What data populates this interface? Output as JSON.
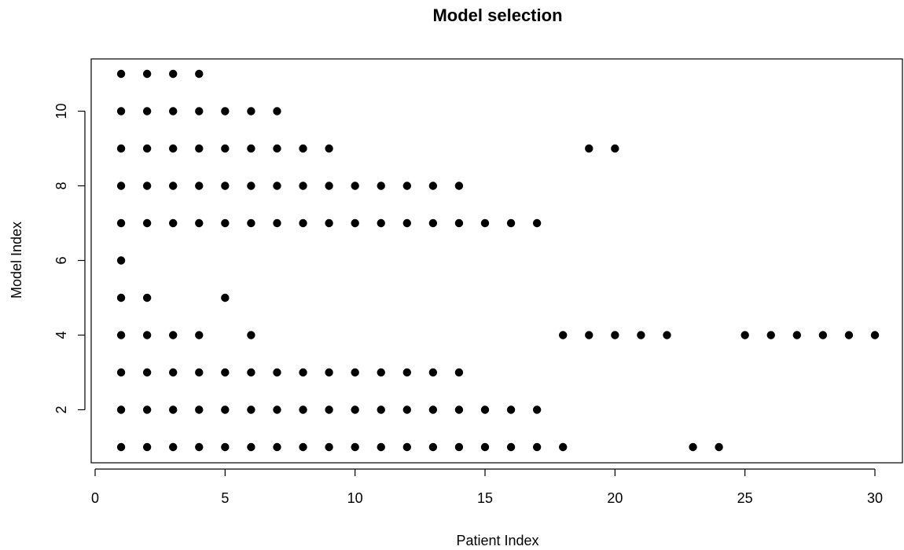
{
  "chart_data": {
    "type": "scatter",
    "title": "Model selection",
    "xlabel": "Patient Index",
    "ylabel": "Model Index",
    "xlim": [
      0,
      30
    ],
    "ylim": [
      1,
      11
    ],
    "xticks": [
      0,
      5,
      10,
      15,
      20,
      25,
      30
    ],
    "yticks": [
      2,
      4,
      6,
      8,
      10
    ],
    "grid": false,
    "marker_color": "#000000",
    "points": [
      {
        "x": 1,
        "y": 11
      },
      {
        "x": 2,
        "y": 11
      },
      {
        "x": 3,
        "y": 11
      },
      {
        "x": 4,
        "y": 11
      },
      {
        "x": 1,
        "y": 10
      },
      {
        "x": 2,
        "y": 10
      },
      {
        "x": 3,
        "y": 10
      },
      {
        "x": 4,
        "y": 10
      },
      {
        "x": 5,
        "y": 10
      },
      {
        "x": 6,
        "y": 10
      },
      {
        "x": 7,
        "y": 10
      },
      {
        "x": 1,
        "y": 9
      },
      {
        "x": 2,
        "y": 9
      },
      {
        "x": 3,
        "y": 9
      },
      {
        "x": 4,
        "y": 9
      },
      {
        "x": 5,
        "y": 9
      },
      {
        "x": 6,
        "y": 9
      },
      {
        "x": 7,
        "y": 9
      },
      {
        "x": 8,
        "y": 9
      },
      {
        "x": 9,
        "y": 9
      },
      {
        "x": 19,
        "y": 9
      },
      {
        "x": 20,
        "y": 9
      },
      {
        "x": 1,
        "y": 8
      },
      {
        "x": 2,
        "y": 8
      },
      {
        "x": 3,
        "y": 8
      },
      {
        "x": 4,
        "y": 8
      },
      {
        "x": 5,
        "y": 8
      },
      {
        "x": 6,
        "y": 8
      },
      {
        "x": 7,
        "y": 8
      },
      {
        "x": 8,
        "y": 8
      },
      {
        "x": 9,
        "y": 8
      },
      {
        "x": 10,
        "y": 8
      },
      {
        "x": 11,
        "y": 8
      },
      {
        "x": 12,
        "y": 8
      },
      {
        "x": 13,
        "y": 8
      },
      {
        "x": 14,
        "y": 8
      },
      {
        "x": 1,
        "y": 7
      },
      {
        "x": 2,
        "y": 7
      },
      {
        "x": 3,
        "y": 7
      },
      {
        "x": 4,
        "y": 7
      },
      {
        "x": 5,
        "y": 7
      },
      {
        "x": 6,
        "y": 7
      },
      {
        "x": 7,
        "y": 7
      },
      {
        "x": 8,
        "y": 7
      },
      {
        "x": 9,
        "y": 7
      },
      {
        "x": 10,
        "y": 7
      },
      {
        "x": 11,
        "y": 7
      },
      {
        "x": 12,
        "y": 7
      },
      {
        "x": 13,
        "y": 7
      },
      {
        "x": 14,
        "y": 7
      },
      {
        "x": 15,
        "y": 7
      },
      {
        "x": 16,
        "y": 7
      },
      {
        "x": 17,
        "y": 7
      },
      {
        "x": 1,
        "y": 6
      },
      {
        "x": 1,
        "y": 5
      },
      {
        "x": 2,
        "y": 5
      },
      {
        "x": 5,
        "y": 5
      },
      {
        "x": 1,
        "y": 4
      },
      {
        "x": 2,
        "y": 4
      },
      {
        "x": 3,
        "y": 4
      },
      {
        "x": 4,
        "y": 4
      },
      {
        "x": 6,
        "y": 4
      },
      {
        "x": 18,
        "y": 4
      },
      {
        "x": 19,
        "y": 4
      },
      {
        "x": 20,
        "y": 4
      },
      {
        "x": 21,
        "y": 4
      },
      {
        "x": 22,
        "y": 4
      },
      {
        "x": 25,
        "y": 4
      },
      {
        "x": 26,
        "y": 4
      },
      {
        "x": 27,
        "y": 4
      },
      {
        "x": 28,
        "y": 4
      },
      {
        "x": 29,
        "y": 4
      },
      {
        "x": 30,
        "y": 4
      },
      {
        "x": 1,
        "y": 3
      },
      {
        "x": 2,
        "y": 3
      },
      {
        "x": 3,
        "y": 3
      },
      {
        "x": 4,
        "y": 3
      },
      {
        "x": 5,
        "y": 3
      },
      {
        "x": 6,
        "y": 3
      },
      {
        "x": 7,
        "y": 3
      },
      {
        "x": 8,
        "y": 3
      },
      {
        "x": 9,
        "y": 3
      },
      {
        "x": 10,
        "y": 3
      },
      {
        "x": 11,
        "y": 3
      },
      {
        "x": 12,
        "y": 3
      },
      {
        "x": 13,
        "y": 3
      },
      {
        "x": 14,
        "y": 3
      },
      {
        "x": 1,
        "y": 2
      },
      {
        "x": 2,
        "y": 2
      },
      {
        "x": 3,
        "y": 2
      },
      {
        "x": 4,
        "y": 2
      },
      {
        "x": 5,
        "y": 2
      },
      {
        "x": 6,
        "y": 2
      },
      {
        "x": 7,
        "y": 2
      },
      {
        "x": 8,
        "y": 2
      },
      {
        "x": 9,
        "y": 2
      },
      {
        "x": 10,
        "y": 2
      },
      {
        "x": 11,
        "y": 2
      },
      {
        "x": 12,
        "y": 2
      },
      {
        "x": 13,
        "y": 2
      },
      {
        "x": 14,
        "y": 2
      },
      {
        "x": 15,
        "y": 2
      },
      {
        "x": 16,
        "y": 2
      },
      {
        "x": 17,
        "y": 2
      },
      {
        "x": 1,
        "y": 1
      },
      {
        "x": 2,
        "y": 1
      },
      {
        "x": 3,
        "y": 1
      },
      {
        "x": 4,
        "y": 1
      },
      {
        "x": 5,
        "y": 1
      },
      {
        "x": 6,
        "y": 1
      },
      {
        "x": 7,
        "y": 1
      },
      {
        "x": 8,
        "y": 1
      },
      {
        "x": 9,
        "y": 1
      },
      {
        "x": 10,
        "y": 1
      },
      {
        "x": 11,
        "y": 1
      },
      {
        "x": 12,
        "y": 1
      },
      {
        "x": 13,
        "y": 1
      },
      {
        "x": 14,
        "y": 1
      },
      {
        "x": 15,
        "y": 1
      },
      {
        "x": 16,
        "y": 1
      },
      {
        "x": 17,
        "y": 1
      },
      {
        "x": 18,
        "y": 1
      },
      {
        "x": 23,
        "y": 1
      },
      {
        "x": 24,
        "y": 1
      }
    ]
  }
}
